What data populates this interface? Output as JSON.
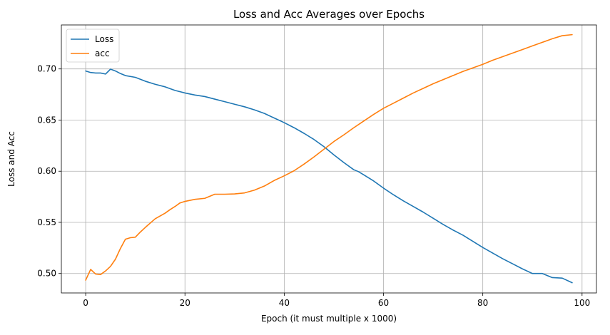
{
  "chart_data": {
    "type": "line",
    "title": "Loss and Acc Averages over Epochs",
    "xlabel": "Epoch (it must multiple x 1000)",
    "ylabel": "Loss and Acc",
    "xlim": [
      -4.9,
      102.9
    ],
    "ylim": [
      0.481,
      0.743
    ],
    "xticks": [
      0,
      20,
      40,
      60,
      80,
      100
    ],
    "yticks": [
      0.5,
      0.55,
      0.6,
      0.65,
      0.7
    ],
    "ytick_labels": [
      "0.50",
      "0.55",
      "0.60",
      "0.65",
      "0.70"
    ],
    "grid": true,
    "legend_position": "top-left",
    "series": [
      {
        "name": "Loss",
        "color": "#1f77b4",
        "points": [
          [
            0,
            0.698
          ],
          [
            1,
            0.6965
          ],
          [
            2,
            0.696
          ],
          [
            3,
            0.696
          ],
          [
            4,
            0.695
          ],
          [
            5,
            0.6998
          ],
          [
            6,
            0.698
          ],
          [
            7,
            0.6955
          ],
          [
            8,
            0.6935
          ],
          [
            10,
            0.6918
          ],
          [
            12,
            0.688
          ],
          [
            14,
            0.685
          ],
          [
            16,
            0.6825
          ],
          [
            18,
            0.679
          ],
          [
            20,
            0.6765
          ],
          [
            22,
            0.6745
          ],
          [
            24,
            0.673
          ],
          [
            26,
            0.6705
          ],
          [
            28,
            0.668
          ],
          [
            30,
            0.6655
          ],
          [
            32,
            0.663
          ],
          [
            34,
            0.66
          ],
          [
            36,
            0.6565
          ],
          [
            38,
            0.652
          ],
          [
            40,
            0.6475
          ],
          [
            42,
            0.6425
          ],
          [
            44,
            0.637
          ],
          [
            46,
            0.631
          ],
          [
            48,
            0.624
          ],
          [
            50,
            0.616
          ],
          [
            52,
            0.6085
          ],
          [
            54,
            0.6015
          ],
          [
            55,
            0.5995
          ],
          [
            56,
            0.5965
          ],
          [
            58,
            0.5905
          ],
          [
            60,
            0.5835
          ],
          [
            62,
            0.577
          ],
          [
            64,
            0.571
          ],
          [
            66,
            0.5655
          ],
          [
            68,
            0.56
          ],
          [
            70,
            0.554
          ],
          [
            72,
            0.548
          ],
          [
            74,
            0.5425
          ],
          [
            76,
            0.5375
          ],
          [
            78,
            0.5315
          ],
          [
            80,
            0.5255
          ],
          [
            82,
            0.52
          ],
          [
            84,
            0.5145
          ],
          [
            86,
            0.5095
          ],
          [
            88,
            0.5045
          ],
          [
            90,
            0.5
          ],
          [
            92,
            0.5
          ],
          [
            94,
            0.496
          ],
          [
            96,
            0.4955
          ],
          [
            98,
            0.491
          ]
        ]
      },
      {
        "name": "acc",
        "color": "#ff7f0e",
        "points": [
          [
            0,
            0.4935
          ],
          [
            1,
            0.504
          ],
          [
            2,
            0.4995
          ],
          [
            3,
            0.499
          ],
          [
            4,
            0.5025
          ],
          [
            5,
            0.507
          ],
          [
            6,
            0.514
          ],
          [
            7,
            0.5245
          ],
          [
            8,
            0.5335
          ],
          [
            9,
            0.535
          ],
          [
            10,
            0.5355
          ],
          [
            11,
            0.5405
          ],
          [
            12,
            0.545
          ],
          [
            14,
            0.5535
          ],
          [
            16,
            0.559
          ],
          [
            17,
            0.5625
          ],
          [
            18,
            0.5655
          ],
          [
            19,
            0.569
          ],
          [
            20,
            0.5705
          ],
          [
            22,
            0.5725
          ],
          [
            24,
            0.5735
          ],
          [
            25,
            0.5755
          ],
          [
            26,
            0.5775
          ],
          [
            28,
            0.5775
          ],
          [
            30,
            0.5778
          ],
          [
            32,
            0.5788
          ],
          [
            34,
            0.5815
          ],
          [
            36,
            0.5855
          ],
          [
            38,
            0.591
          ],
          [
            40,
            0.5955
          ],
          [
            42,
            0.6005
          ],
          [
            44,
            0.607
          ],
          [
            46,
            0.614
          ],
          [
            48,
            0.6215
          ],
          [
            50,
            0.629
          ],
          [
            52,
            0.6355
          ],
          [
            54,
            0.6425
          ],
          [
            56,
            0.649
          ],
          [
            58,
            0.6555
          ],
          [
            60,
            0.6615
          ],
          [
            62,
            0.6665
          ],
          [
            64,
            0.6715
          ],
          [
            66,
            0.6765
          ],
          [
            68,
            0.681
          ],
          [
            70,
            0.6855
          ],
          [
            72,
            0.6895
          ],
          [
            74,
            0.6935
          ],
          [
            76,
            0.6975
          ],
          [
            78,
            0.701
          ],
          [
            80,
            0.7045
          ],
          [
            82,
            0.7085
          ],
          [
            84,
            0.712
          ],
          [
            86,
            0.7155
          ],
          [
            88,
            0.719
          ],
          [
            90,
            0.7225
          ],
          [
            92,
            0.726
          ],
          [
            94,
            0.7295
          ],
          [
            96,
            0.7325
          ],
          [
            98,
            0.7335
          ]
        ]
      }
    ]
  }
}
